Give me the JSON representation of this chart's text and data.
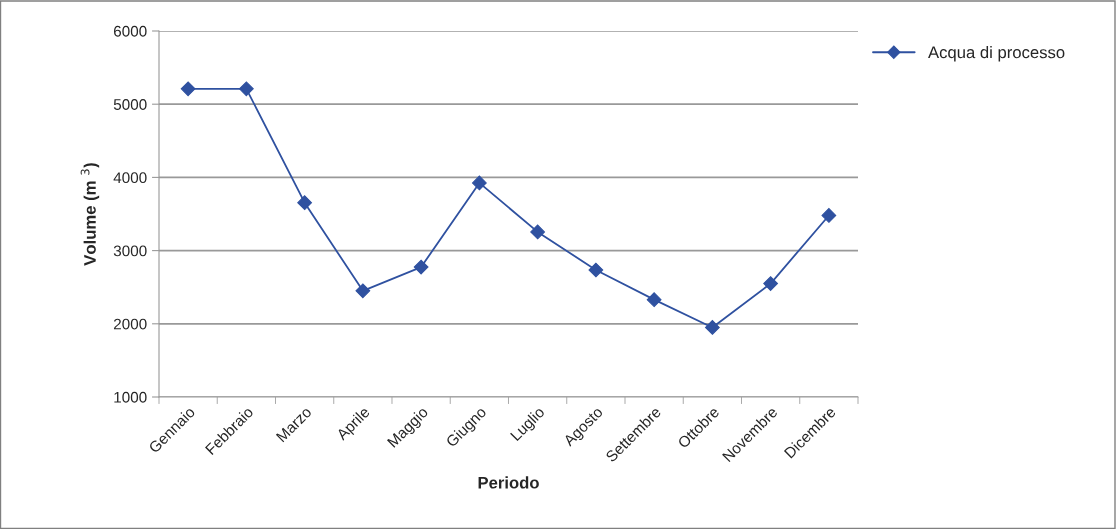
{
  "chart_data": {
    "type": "line",
    "xlabel": "Periodo",
    "ylabel": "Volume (m $^{3}$)",
    "categories": [
      "Gennaio",
      "Febbraio",
      "Marzo",
      "Aprile",
      "Maggio",
      "Giugno",
      "Luglio",
      "Agosto",
      "Settembre",
      "Ottobre",
      "Novembre",
      "Dicembre"
    ],
    "series": [
      {
        "name": "Acqua di processo",
        "color": "#2f51a0",
        "values": [
          5210,
          5210,
          3655,
          2450,
          2775,
          3925,
          3255,
          2735,
          2330,
          1950,
          2550,
          3480
        ]
      }
    ],
    "ylim": [
      1000,
      6000
    ],
    "yticks": [
      1000,
      2000,
      3000,
      4000,
      5000,
      6000
    ],
    "grid": "y",
    "legend": "top right",
    "marker": "diamond",
    "line_style": "solid"
  }
}
